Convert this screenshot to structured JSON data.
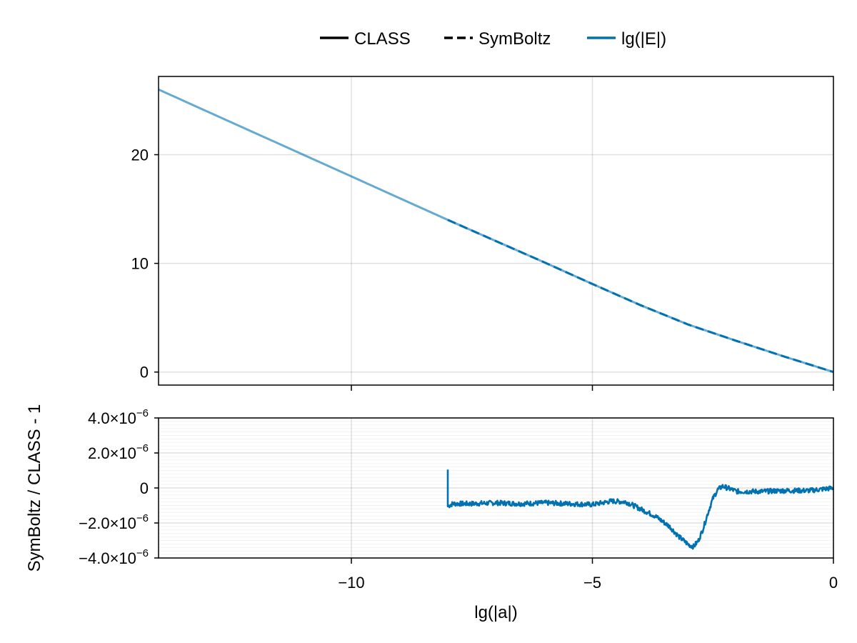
{
  "chart_data": [
    {
      "panel": "top",
      "type": "line",
      "xlim": [
        -14,
        0
      ],
      "ylim": [
        -1.2,
        27.2
      ],
      "x_ticks": [
        -10,
        -5,
        0
      ],
      "y_ticks": [
        0,
        10,
        20
      ],
      "y_tick_labels": [
        "0",
        "10",
        "20"
      ],
      "grid": true,
      "legend": {
        "placement": "top-center",
        "entries": [
          {
            "name": "CLASS",
            "style": "solid",
            "color": "#000000"
          },
          {
            "name": "SymBoltz",
            "style": "dashed",
            "color": "#000000"
          },
          {
            "name": "lg(|E|)",
            "style": "solid",
            "color": "#0072b2"
          }
        ]
      },
      "series": [
        {
          "name": "CLASS",
          "style": "solid",
          "color": "#0072b2",
          "opacity": 0.6,
          "x": [
            -14,
            -13,
            -12,
            -11,
            -10,
            -9,
            -8,
            -7,
            -6,
            -5,
            -4,
            -3,
            -2,
            -1,
            0
          ],
          "y": [
            26.0,
            24.0,
            22.0,
            20.0,
            18.0,
            16.0,
            14.0,
            12.05,
            10.1,
            8.1,
            6.15,
            4.35,
            2.85,
            1.4,
            0.0
          ]
        },
        {
          "name": "SymBoltz",
          "style": "dashed",
          "color": "#0072b2",
          "x": [
            -8,
            -7,
            -6,
            -5,
            -4,
            -3,
            -2,
            -1,
            0
          ],
          "y": [
            14.0,
            12.05,
            10.1,
            8.1,
            6.15,
            4.35,
            2.85,
            1.4,
            0.0
          ]
        }
      ]
    },
    {
      "panel": "bottom",
      "type": "line",
      "xlabel": "lg(|a|)",
      "ylabel": "SymBoltz / CLASS - 1",
      "xlim": [
        -14,
        0
      ],
      "ylim": [
        -4e-06,
        4e-06
      ],
      "x_ticks": [
        -10,
        -5,
        0
      ],
      "x_tick_labels": [
        "−10",
        "−5",
        "0"
      ],
      "y_ticks": [
        4e-06,
        2e-06,
        0,
        -2e-06,
        -4e-06
      ],
      "y_tick_labels": [
        {
          "mantissa": "4.0×10",
          "exp": "−6"
        },
        {
          "mantissa": "2.0×10",
          "exp": "−6"
        },
        {
          "mantissa": "0",
          "exp": ""
        },
        {
          "mantissa": "−2.0×10",
          "exp": "−6"
        },
        {
          "mantissa": "−4.0×10",
          "exp": "−6"
        }
      ],
      "grid": true,
      "series": [
        {
          "name": "SymBoltz / CLASS - 1",
          "color": "#0072b2",
          "x": [
            -8.0,
            -8.0,
            -7.9,
            -7.5,
            -7.0,
            -6.5,
            -6.0,
            -5.5,
            -5.0,
            -4.6,
            -4.3,
            -4.0,
            -3.7,
            -3.4,
            -3.2,
            -3.0,
            -2.9,
            -2.8,
            -2.7,
            -2.6,
            -2.5,
            -2.4,
            -2.3,
            -2.0,
            -1.5,
            -1.0,
            -0.5,
            0.0
          ],
          "y": [
            1.05e-06,
            -1.05e-06,
            -9e-07,
            -9e-07,
            -8.5e-07,
            -9e-07,
            -8.5e-07,
            -9e-07,
            -9.5e-07,
            -7.5e-07,
            -8e-07,
            -1.2e-06,
            -1.6e-06,
            -2.2e-06,
            -2.8e-06,
            -3.25e-06,
            -3.35e-06,
            -3e-06,
            -2.3e-06,
            -1.4e-06,
            -6e-07,
            -1e-07,
            1e-07,
            -2e-07,
            -2e-07,
            -1.5e-07,
            -1.5e-07,
            0.0
          ]
        }
      ]
    }
  ]
}
